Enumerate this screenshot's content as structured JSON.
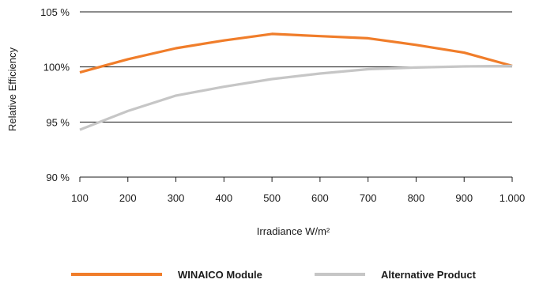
{
  "chart_data": {
    "type": "line",
    "title": "",
    "xlabel": "Irradiance W/m²",
    "ylabel": "Relative Efficiency",
    "xlim": [
      100,
      1000
    ],
    "ylim": [
      90,
      105
    ],
    "x_ticks": [
      100,
      200,
      300,
      400,
      500,
      600,
      700,
      800,
      900,
      1000
    ],
    "x_tick_labels": [
      "100",
      "200",
      "300",
      "400",
      "500",
      "600",
      "700",
      "800",
      "900",
      "1.000"
    ],
    "y_ticks": [
      90,
      95,
      100,
      105
    ],
    "y_tick_labels": [
      "90 %",
      "95 %",
      "100%",
      "105 %"
    ],
    "grid": "horizontal",
    "legend_position": "bottom",
    "series": [
      {
        "name": "WINAICO Module",
        "color": "#f07d2a",
        "x": [
          100,
          200,
          300,
          400,
          500,
          600,
          700,
          800,
          900,
          1000
        ],
        "y": [
          99.5,
          100.7,
          101.7,
          102.4,
          103.0,
          102.8,
          102.6,
          102.0,
          101.3,
          100.1
        ]
      },
      {
        "name": "Alternative Product",
        "color": "#c6c6c6",
        "x": [
          100,
          200,
          300,
          400,
          500,
          600,
          700,
          800,
          900,
          1000
        ],
        "y": [
          94.3,
          96.0,
          97.4,
          98.2,
          98.9,
          99.4,
          99.8,
          99.95,
          100.05,
          100.1
        ]
      }
    ]
  }
}
